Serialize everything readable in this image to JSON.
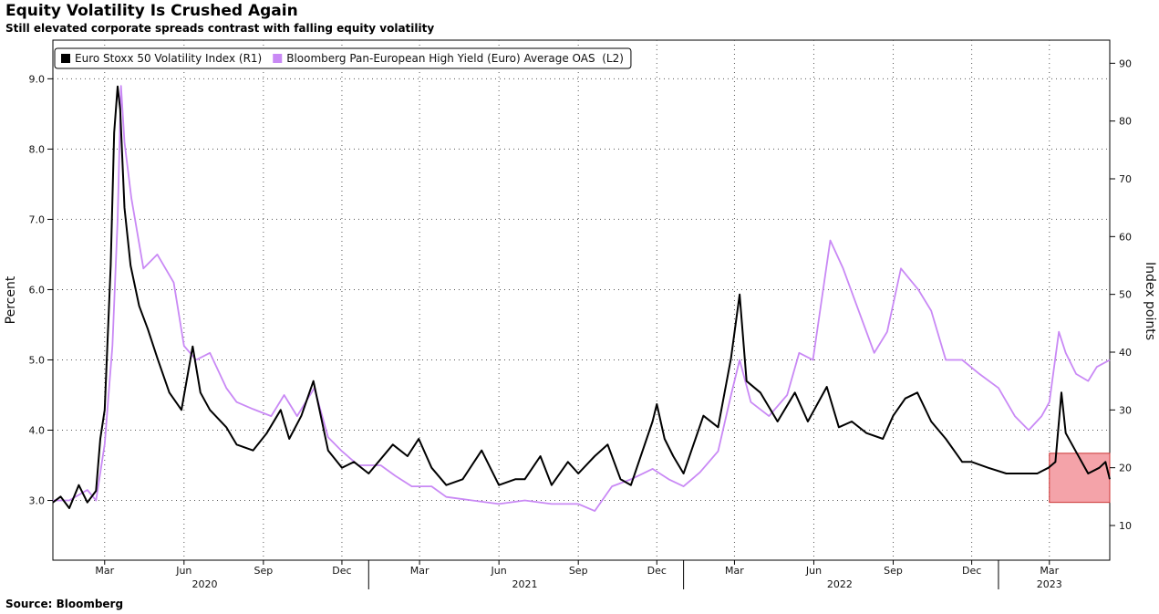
{
  "header": {
    "title": "Equity Volatility Is Crushed Again",
    "subtitle": "Still elevated corporate spreads contrast with falling equity volatility"
  },
  "footer": {
    "source": "Source: Bloomberg"
  },
  "chart_data": {
    "type": "line",
    "ylabel_left": "Percent",
    "ylabel_right": "Index points",
    "y_left": {
      "range": [
        2.15,
        9.55
      ],
      "ticks": [
        "3.0",
        "4.0",
        "5.0",
        "6.0",
        "7.0",
        "8.0",
        "9.0"
      ]
    },
    "y_right": {
      "range": [
        4,
        94
      ],
      "ticks": [
        "10",
        "20",
        "30",
        "40",
        "50",
        "60",
        "70",
        "80",
        "90"
      ]
    },
    "x_range": [
      "2020-01-01",
      "2023-05-10"
    ],
    "month_ticks": [
      {
        "label": "Mar",
        "date": "2020-03-01"
      },
      {
        "label": "Jun",
        "date": "2020-06-01"
      },
      {
        "label": "Sep",
        "date": "2020-09-01"
      },
      {
        "label": "Dec",
        "date": "2020-12-01"
      },
      {
        "label": "Mar",
        "date": "2021-03-01"
      },
      {
        "label": "Jun",
        "date": "2021-06-01"
      },
      {
        "label": "Sep",
        "date": "2021-09-01"
      },
      {
        "label": "Dec",
        "date": "2021-12-01"
      },
      {
        "label": "Mar",
        "date": "2022-03-01"
      },
      {
        "label": "Jun",
        "date": "2022-06-01"
      },
      {
        "label": "Sep",
        "date": "2022-09-01"
      },
      {
        "label": "Dec",
        "date": "2022-12-01"
      },
      {
        "label": "Mar",
        "date": "2023-03-01"
      }
    ],
    "year_labels": [
      {
        "label": "2020",
        "date": "2020-06-25"
      },
      {
        "label": "2021",
        "date": "2021-07-01"
      },
      {
        "label": "2022",
        "date": "2022-07-01"
      },
      {
        "label": "2023",
        "date": "2023-03-01"
      }
    ],
    "grid": true,
    "legend_position": "top-left",
    "series": [
      {
        "name": "Euro Stoxx 50 Volatility Index (R1)",
        "axis": "right",
        "color": "#000000",
        "points": [
          [
            "2020-01-01",
            14
          ],
          [
            "2020-01-10",
            15
          ],
          [
            "2020-01-20",
            13
          ],
          [
            "2020-01-31",
            17
          ],
          [
            "2020-02-10",
            14
          ],
          [
            "2020-02-20",
            16
          ],
          [
            "2020-02-25",
            25
          ],
          [
            "2020-03-01",
            30
          ],
          [
            "2020-03-08",
            55
          ],
          [
            "2020-03-12",
            78
          ],
          [
            "2020-03-16",
            86
          ],
          [
            "2020-03-19",
            82
          ],
          [
            "2020-03-24",
            65
          ],
          [
            "2020-03-31",
            55
          ],
          [
            "2020-04-10",
            48
          ],
          [
            "2020-04-20",
            44
          ],
          [
            "2020-05-01",
            39
          ],
          [
            "2020-05-15",
            33
          ],
          [
            "2020-05-29",
            30
          ],
          [
            "2020-06-11",
            41
          ],
          [
            "2020-06-20",
            33
          ],
          [
            "2020-07-01",
            30
          ],
          [
            "2020-07-20",
            27
          ],
          [
            "2020-08-01",
            24
          ],
          [
            "2020-08-20",
            23
          ],
          [
            "2020-09-05",
            26
          ],
          [
            "2020-09-21",
            30
          ],
          [
            "2020-10-01",
            25
          ],
          [
            "2020-10-15",
            29
          ],
          [
            "2020-10-29",
            35
          ],
          [
            "2020-11-05",
            30
          ],
          [
            "2020-11-15",
            23
          ],
          [
            "2020-12-01",
            20
          ],
          [
            "2020-12-15",
            21
          ],
          [
            "2021-01-01",
            19
          ],
          [
            "2021-01-29",
            24
          ],
          [
            "2021-02-15",
            22
          ],
          [
            "2021-02-28",
            25
          ],
          [
            "2021-03-15",
            20
          ],
          [
            "2021-04-01",
            17
          ],
          [
            "2021-04-20",
            18
          ],
          [
            "2021-05-12",
            23
          ],
          [
            "2021-06-01",
            17
          ],
          [
            "2021-06-20",
            18
          ],
          [
            "2021-07-01",
            18
          ],
          [
            "2021-07-19",
            22
          ],
          [
            "2021-08-01",
            17
          ],
          [
            "2021-08-20",
            21
          ],
          [
            "2021-09-01",
            19
          ],
          [
            "2021-09-20",
            22
          ],
          [
            "2021-10-05",
            24
          ],
          [
            "2021-10-20",
            18
          ],
          [
            "2021-11-01",
            17
          ],
          [
            "2021-11-26",
            28
          ],
          [
            "2021-12-01",
            31
          ],
          [
            "2021-12-10",
            25
          ],
          [
            "2021-12-20",
            22
          ],
          [
            "2022-01-01",
            19
          ],
          [
            "2022-01-24",
            29
          ],
          [
            "2022-02-10",
            27
          ],
          [
            "2022-02-25",
            39
          ],
          [
            "2022-03-07",
            50
          ],
          [
            "2022-03-15",
            35
          ],
          [
            "2022-03-31",
            33
          ],
          [
            "2022-04-20",
            28
          ],
          [
            "2022-05-10",
            33
          ],
          [
            "2022-05-25",
            28
          ],
          [
            "2022-06-16",
            34
          ],
          [
            "2022-06-30",
            27
          ],
          [
            "2022-07-15",
            28
          ],
          [
            "2022-08-01",
            26
          ],
          [
            "2022-08-20",
            25
          ],
          [
            "2022-09-01",
            29
          ],
          [
            "2022-09-15",
            32
          ],
          [
            "2022-09-29",
            33
          ],
          [
            "2022-10-15",
            28
          ],
          [
            "2022-11-01",
            25
          ],
          [
            "2022-11-20",
            21
          ],
          [
            "2022-12-01",
            21
          ],
          [
            "2022-12-20",
            20
          ],
          [
            "2023-01-10",
            19
          ],
          [
            "2023-01-31",
            19
          ],
          [
            "2023-02-15",
            19
          ],
          [
            "2023-02-28",
            20
          ],
          [
            "2023-03-08",
            21
          ],
          [
            "2023-03-15",
            33
          ],
          [
            "2023-03-20",
            26
          ],
          [
            "2023-03-31",
            23
          ],
          [
            "2023-04-15",
            19
          ],
          [
            "2023-04-28",
            20
          ],
          [
            "2023-05-05",
            21
          ],
          [
            "2023-05-10",
            18
          ]
        ]
      },
      {
        "name": "Bloomberg Pan-European High Yield (Euro) Average OAS  (L2)",
        "axis": "left",
        "color": "#c989f5",
        "points": [
          [
            "2020-01-01",
            3.0
          ],
          [
            "2020-01-20",
            3.0
          ],
          [
            "2020-02-10",
            3.15
          ],
          [
            "2020-02-20",
            3.0
          ],
          [
            "2020-03-01",
            3.8
          ],
          [
            "2020-03-10",
            5.2
          ],
          [
            "2020-03-16",
            7.0
          ],
          [
            "2020-03-20",
            8.9
          ],
          [
            "2020-03-24",
            8.1
          ],
          [
            "2020-04-01",
            7.3
          ],
          [
            "2020-04-15",
            6.3
          ],
          [
            "2020-05-01",
            6.5
          ],
          [
            "2020-05-20",
            6.1
          ],
          [
            "2020-06-01",
            5.2
          ],
          [
            "2020-06-15",
            5.0
          ],
          [
            "2020-07-01",
            5.1
          ],
          [
            "2020-07-20",
            4.6
          ],
          [
            "2020-08-01",
            4.4
          ],
          [
            "2020-08-20",
            4.3
          ],
          [
            "2020-09-10",
            4.2
          ],
          [
            "2020-09-25",
            4.5
          ],
          [
            "2020-10-10",
            4.2
          ],
          [
            "2020-10-30",
            4.6
          ],
          [
            "2020-11-15",
            3.9
          ],
          [
            "2020-12-01",
            3.7
          ],
          [
            "2020-12-20",
            3.5
          ],
          [
            "2021-01-15",
            3.5
          ],
          [
            "2021-02-01",
            3.35
          ],
          [
            "2021-02-20",
            3.2
          ],
          [
            "2021-03-15",
            3.2
          ],
          [
            "2021-04-01",
            3.05
          ],
          [
            "2021-05-01",
            3.0
          ],
          [
            "2021-06-01",
            2.95
          ],
          [
            "2021-07-01",
            3.0
          ],
          [
            "2021-08-01",
            2.95
          ],
          [
            "2021-09-01",
            2.95
          ],
          [
            "2021-09-20",
            2.85
          ],
          [
            "2021-10-10",
            3.2
          ],
          [
            "2021-11-01",
            3.3
          ],
          [
            "2021-11-26",
            3.45
          ],
          [
            "2021-12-15",
            3.3
          ],
          [
            "2022-01-01",
            3.2
          ],
          [
            "2022-01-20",
            3.4
          ],
          [
            "2022-02-10",
            3.7
          ],
          [
            "2022-02-25",
            4.5
          ],
          [
            "2022-03-07",
            5.0
          ],
          [
            "2022-03-20",
            4.4
          ],
          [
            "2022-04-10",
            4.2
          ],
          [
            "2022-05-01",
            4.5
          ],
          [
            "2022-05-15",
            5.1
          ],
          [
            "2022-05-31",
            5.0
          ],
          [
            "2022-06-20",
            6.7
          ],
          [
            "2022-07-05",
            6.3
          ],
          [
            "2022-07-20",
            5.8
          ],
          [
            "2022-08-10",
            5.1
          ],
          [
            "2022-08-25",
            5.4
          ],
          [
            "2022-09-10",
            6.3
          ],
          [
            "2022-09-30",
            6.0
          ],
          [
            "2022-10-15",
            5.7
          ],
          [
            "2022-11-01",
            5.0
          ],
          [
            "2022-11-20",
            5.0
          ],
          [
            "2022-12-10",
            4.8
          ],
          [
            "2023-01-01",
            4.6
          ],
          [
            "2023-01-20",
            4.2
          ],
          [
            "2023-02-05",
            4.0
          ],
          [
            "2023-02-20",
            4.2
          ],
          [
            "2023-03-01",
            4.4
          ],
          [
            "2023-03-12",
            5.4
          ],
          [
            "2023-03-20",
            5.1
          ],
          [
            "2023-04-01",
            4.8
          ],
          [
            "2023-04-15",
            4.7
          ],
          [
            "2023-04-25",
            4.9
          ],
          [
            "2023-05-10",
            5.0
          ]
        ]
      }
    ],
    "highlight": {
      "x": [
        "2023-03-01",
        "2023-05-10"
      ],
      "y_right": [
        14,
        22.5
      ],
      "color": "#f4a3a9"
    }
  }
}
